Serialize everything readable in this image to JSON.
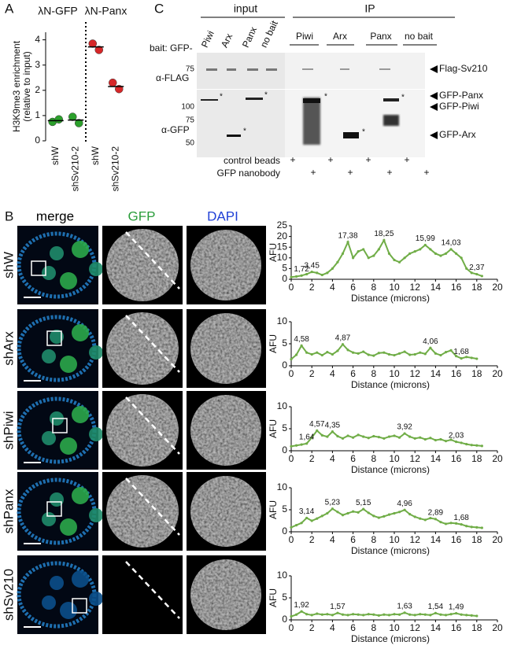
{
  "panel_labels": {
    "a": "A",
    "b": "B",
    "c": "C"
  },
  "chart_data": [
    {
      "type": "dot",
      "y_label": [
        "H3K9me3 enrichment",
        "(relative to input)"
      ],
      "ylim": [
        0,
        4.3
      ],
      "yticks": [
        0,
        1,
        2,
        3,
        4
      ],
      "groups": [
        {
          "name": "λN-GFP",
          "color": "#2ca02c",
          "categories": [
            "shW",
            "shSv210-2"
          ],
          "points": [
            [
              0.75,
              0.85
            ],
            [
              0.95,
              0.7
            ]
          ],
          "means": [
            0.8,
            0.82
          ]
        },
        {
          "name": "λN-Panx",
          "color": "#d62728",
          "categories": [
            "shW",
            "shSv210-2"
          ],
          "points": [
            [
              3.85,
              3.6
            ],
            [
              2.3,
              2.05
            ]
          ],
          "means": [
            3.72,
            2.15
          ]
        }
      ]
    },
    {
      "type": "line",
      "y_label": "AFU",
      "x_label": "Distance (microns)",
      "color": "#70ad47",
      "xlim": [
        0,
        20
      ],
      "ylim": [
        0,
        25
      ],
      "xticks": [
        0,
        2,
        4,
        6,
        8,
        10,
        12,
        14,
        16,
        18,
        20
      ],
      "yticks": [
        0,
        5,
        10,
        15,
        20,
        25
      ],
      "x": [
        0,
        0.5,
        1,
        1.5,
        2,
        2.5,
        3,
        3.5,
        4,
        4.5,
        5,
        5.5,
        6,
        6.5,
        7,
        7.5,
        8,
        8.5,
        9,
        9.5,
        10,
        10.5,
        11,
        11.5,
        12,
        12.5,
        13,
        13.5,
        14,
        14.5,
        15,
        15.5,
        16,
        16.5,
        17,
        17.5,
        18,
        18.5
      ],
      "values": [
        1,
        1.3,
        1.72,
        2.4,
        3.45,
        3,
        2,
        3,
        5,
        8,
        12,
        17.38,
        10,
        13,
        14,
        10,
        11,
        14,
        18.25,
        12,
        9,
        8,
        10,
        12,
        13,
        14,
        15.99,
        14,
        12,
        11,
        12,
        14.03,
        12,
        10,
        5,
        3,
        2.37,
        1.5
      ],
      "annotations": [
        {
          "x": 1,
          "y": 1.72,
          "label": "1,72"
        },
        {
          "x": 2,
          "y": 3.45,
          "label": "3,45"
        },
        {
          "x": 5.5,
          "y": 17.38,
          "label": "17,38"
        },
        {
          "x": 9,
          "y": 18.25,
          "label": "18,25"
        },
        {
          "x": 13,
          "y": 15.99,
          "label": "15,99"
        },
        {
          "x": 15.5,
          "y": 14.03,
          "label": "14,03"
        },
        {
          "x": 18,
          "y": 2.37,
          "label": "2,37"
        }
      ]
    },
    {
      "type": "line",
      "y_label": "AFU",
      "x_label": "Distance (microns)",
      "color": "#70ad47",
      "xlim": [
        0,
        20
      ],
      "ylim": [
        0,
        10
      ],
      "xticks": [
        0,
        2,
        4,
        6,
        8,
        10,
        12,
        14,
        16,
        18,
        20
      ],
      "yticks": [
        0,
        5,
        10
      ],
      "x": [
        0,
        0.5,
        1,
        1.5,
        2,
        2.5,
        3,
        3.5,
        4,
        4.5,
        5,
        5.5,
        6,
        6.5,
        7,
        7.5,
        8,
        8.5,
        9,
        9.5,
        10,
        10.5,
        11,
        11.5,
        12,
        12.5,
        13,
        13.5,
        14,
        14.5,
        15,
        15.5,
        16,
        16.5,
        17,
        17.5,
        18
      ],
      "values": [
        1.5,
        2.5,
        4.58,
        3,
        2.6,
        3,
        2.4,
        3.1,
        2.6,
        3.4,
        4.87,
        3.6,
        3,
        2.8,
        3.2,
        2.5,
        2.3,
        2.9,
        3,
        2.6,
        2.4,
        2.8,
        3.2,
        2.5,
        2.6,
        3,
        2.7,
        4.06,
        2.8,
        2.4,
        3.1,
        3.5,
        2.2,
        1.68,
        2,
        1.8,
        1.6
      ],
      "annotations": [
        {
          "x": 1,
          "y": 4.58,
          "label": "4,58"
        },
        {
          "x": 5,
          "y": 4.87,
          "label": "4,87"
        },
        {
          "x": 13.5,
          "y": 4.06,
          "label": "4,06"
        },
        {
          "x": 16.5,
          "y": 1.68,
          "label": "1,68"
        }
      ]
    },
    {
      "type": "line",
      "y_label": "AFU",
      "x_label": "Distance (microns)",
      "color": "#70ad47",
      "xlim": [
        0,
        20
      ],
      "ylim": [
        0,
        10
      ],
      "xticks": [
        0,
        2,
        4,
        6,
        8,
        10,
        12,
        14,
        16,
        18,
        20
      ],
      "yticks": [
        0,
        5,
        10
      ],
      "x": [
        0,
        0.5,
        1,
        1.5,
        2,
        2.5,
        3,
        3.5,
        4,
        4.5,
        5,
        5.5,
        6,
        6.5,
        7,
        7.5,
        8,
        8.5,
        9,
        9.5,
        10,
        10.5,
        11,
        11.5,
        12,
        12.5,
        13,
        13.5,
        14,
        14.5,
        15,
        15.5,
        16,
        16.5,
        17,
        17.5,
        18,
        18.5
      ],
      "values": [
        1,
        1.2,
        1.4,
        1.64,
        3,
        4.57,
        3.5,
        3.2,
        4.35,
        3.3,
        2.8,
        3.4,
        3,
        3.6,
        3.2,
        2.9,
        3.3,
        3.1,
        2.8,
        3.2,
        3.4,
        3,
        3.92,
        3.2,
        2.8,
        3,
        2.6,
        2.9,
        2.4,
        2.6,
        2.2,
        2.5,
        2.03,
        1.8,
        1.5,
        1.3,
        1.2,
        1.1
      ],
      "annotations": [
        {
          "x": 1.5,
          "y": 1.64,
          "label": "1,64"
        },
        {
          "x": 2.5,
          "y": 4.57,
          "label": "4,57"
        },
        {
          "x": 4,
          "y": 4.35,
          "label": "4,35"
        },
        {
          "x": 11,
          "y": 3.92,
          "label": "3,92"
        },
        {
          "x": 16,
          "y": 2.03,
          "label": "2,03"
        }
      ]
    },
    {
      "type": "line",
      "y_label": "AFU",
      "x_label": "Distance (microns)",
      "color": "#70ad47",
      "xlim": [
        0,
        20
      ],
      "ylim": [
        0,
        10
      ],
      "xticks": [
        0,
        2,
        4,
        6,
        8,
        10,
        12,
        14,
        16,
        18,
        20
      ],
      "yticks": [
        0,
        5,
        10
      ],
      "x": [
        0,
        0.5,
        1,
        1.5,
        2,
        2.5,
        3,
        3.5,
        4,
        4.5,
        5,
        5.5,
        6,
        6.5,
        7,
        7.5,
        8,
        8.5,
        9,
        9.5,
        10,
        10.5,
        11,
        11.5,
        12,
        12.5,
        13,
        13.5,
        14,
        14.5,
        15,
        15.5,
        16,
        16.5,
        17,
        17.5,
        18,
        18.5
      ],
      "values": [
        1,
        1.5,
        2,
        3.14,
        2.5,
        3,
        3.6,
        4.2,
        5.23,
        4.5,
        3.8,
        4.2,
        4.6,
        4.4,
        5.15,
        4.3,
        3.6,
        3.2,
        3.5,
        3.9,
        4.2,
        4.5,
        4.96,
        4,
        3.4,
        3,
        2.7,
        3.1,
        2.89,
        2.2,
        1.8,
        2,
        1.9,
        1.68,
        1.3,
        1.1,
        1,
        0.9
      ],
      "annotations": [
        {
          "x": 1.5,
          "y": 3.14,
          "label": "3,14"
        },
        {
          "x": 4,
          "y": 5.23,
          "label": "5,23"
        },
        {
          "x": 7,
          "y": 5.15,
          "label": "5,15"
        },
        {
          "x": 11,
          "y": 4.96,
          "label": "4,96"
        },
        {
          "x": 14,
          "y": 2.89,
          "label": "2,89"
        },
        {
          "x": 16.5,
          "y": 1.68,
          "label": "1,68"
        }
      ]
    },
    {
      "type": "line",
      "y_label": "AFU",
      "x_label": "Distance (microns)",
      "color": "#70ad47",
      "xlim": [
        0,
        20
      ],
      "ylim": [
        0,
        10
      ],
      "xticks": [
        0,
        2,
        4,
        6,
        8,
        10,
        12,
        14,
        16,
        18,
        20
      ],
      "yticks": [
        0,
        5,
        10
      ],
      "x": [
        0,
        0.5,
        1,
        1.5,
        2,
        2.5,
        3,
        3.5,
        4,
        4.5,
        5,
        5.5,
        6,
        6.5,
        7,
        7.5,
        8,
        8.5,
        9,
        9.5,
        10,
        10.5,
        11,
        11.5,
        12,
        12.5,
        13,
        13.5,
        14,
        14.5,
        15,
        15.5,
        16,
        16.5,
        17,
        17.5,
        18
      ],
      "values": [
        0.8,
        1.2,
        1.92,
        1.3,
        1.1,
        1.4,
        1.2,
        1.3,
        1.1,
        1.57,
        1.2,
        1.1,
        1.3,
        1.2,
        1.1,
        1.3,
        1.2,
        1,
        1.2,
        1.1,
        1.3,
        1.2,
        1.63,
        1.2,
        1.1,
        1.3,
        1.2,
        1.1,
        1.54,
        1.2,
        1.1,
        1.3,
        1.49,
        1.2,
        1.1,
        1,
        0.9
      ],
      "annotations": [
        {
          "x": 1,
          "y": 1.92,
          "label": "1,92"
        },
        {
          "x": 4.5,
          "y": 1.57,
          "label": "1,57"
        },
        {
          "x": 11,
          "y": 1.63,
          "label": "1,63"
        },
        {
          "x": 14,
          "y": 1.54,
          "label": "1,54"
        },
        {
          "x": 16,
          "y": 1.49,
          "label": "1,49"
        }
      ]
    }
  ],
  "blot": {
    "input": "input",
    "ip": "IP",
    "bait": "bait: GFP-",
    "input_lanes": [
      "Piwi",
      "Arx",
      "Panx",
      "no bait"
    ],
    "ip_lanes": [
      "Piwi",
      "Arx",
      "Panx",
      "no bait"
    ],
    "flag": "α-FLAG",
    "gfp": "α-GFP",
    "flag_markers": [
      75
    ],
    "gfp_markers": [
      100,
      75,
      50
    ],
    "bands": [
      "Flag-Sv210",
      "GFP-Panx",
      "GFP-Piwi",
      "GFP-Arx"
    ],
    "star": "*",
    "plus": "+",
    "rows": [
      "control beads",
      "GFP nanobody"
    ]
  },
  "micrographs": {
    "columns": [
      "merge",
      "GFP",
      "DAPI"
    ],
    "rows": [
      "shW",
      "shArx",
      "shPiwi",
      "shPanx",
      "shSv210"
    ]
  }
}
